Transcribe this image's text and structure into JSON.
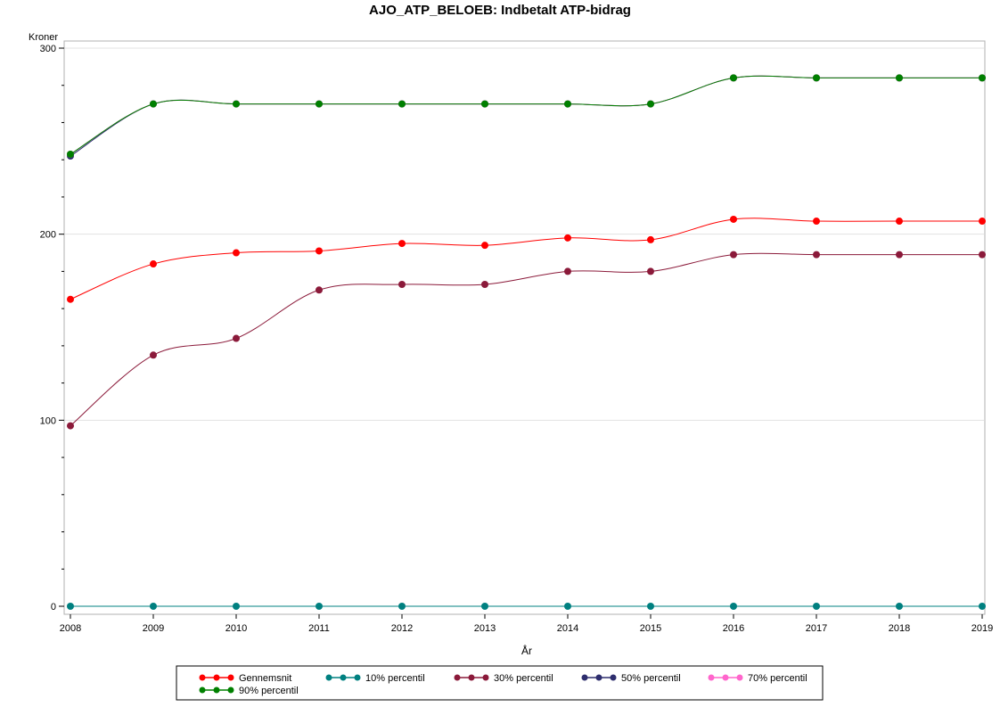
{
  "chart_data": {
    "type": "line",
    "title": "AJO_ATP_BELOEB: Indbetalt ATP-bidrag",
    "xlabel": "År",
    "ylabel": "Kroner",
    "ylim": [
      0,
      300
    ],
    "yticks": [
      0,
      100,
      200,
      300
    ],
    "x": [
      "2008",
      "2009",
      "2010",
      "2011",
      "2012",
      "2013",
      "2014",
      "2015",
      "2016",
      "2017",
      "2018",
      "2019"
    ],
    "grid": "horizontal",
    "legend_position": "bottom",
    "series": [
      {
        "name": "Gennemsnit",
        "color": "#ff0000",
        "values": [
          165,
          184,
          190,
          191,
          195,
          194,
          198,
          197,
          208,
          207,
          207,
          207
        ]
      },
      {
        "name": "10% percentil",
        "color": "#008080",
        "values": [
          0,
          0,
          0,
          0,
          0,
          0,
          0,
          0,
          0,
          0,
          0,
          0
        ]
      },
      {
        "name": "30% percentil",
        "color": "#8b1a3a",
        "values": [
          97,
          135,
          144,
          170,
          173,
          173,
          180,
          180,
          189,
          189,
          189,
          189
        ]
      },
      {
        "name": "50% percentil",
        "color": "#2e2e6e",
        "values": [
          242,
          270,
          270,
          270,
          270,
          270,
          270,
          270,
          284,
          284,
          284,
          284
        ]
      },
      {
        "name": "70% percentil",
        "color": "#ff66cc",
        "values": [
          243,
          270,
          270,
          270,
          270,
          270,
          270,
          270,
          284,
          284,
          284,
          284
        ]
      },
      {
        "name": "90% percentil",
        "color": "#008000",
        "values": [
          243,
          270,
          270,
          270,
          270,
          270,
          270,
          270,
          284,
          284,
          284,
          284
        ]
      }
    ]
  }
}
